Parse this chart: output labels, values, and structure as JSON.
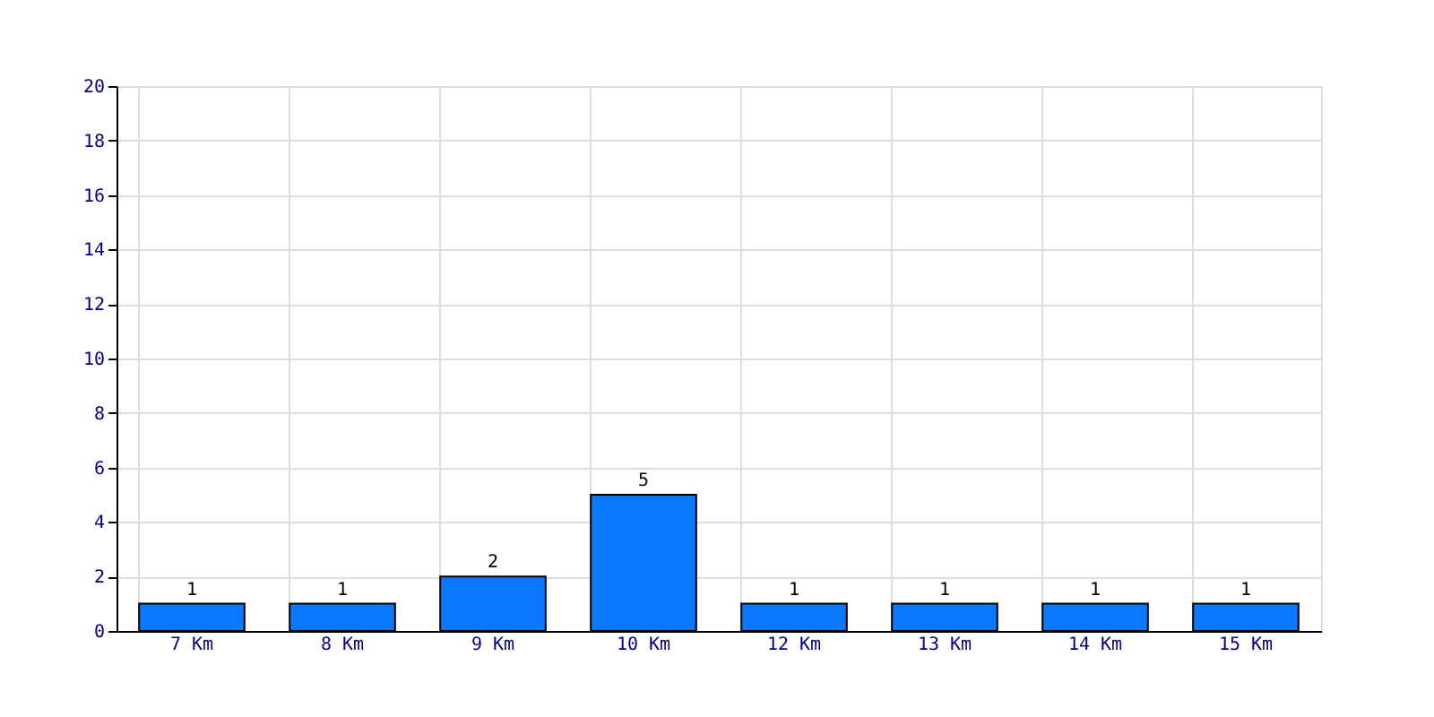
{
  "chart_data": {
    "type": "bar",
    "categories": [
      "7 Km",
      "8 Km",
      "9 Km",
      "10 Km",
      "12 Km",
      "13 Km",
      "14 Km",
      "15 Km"
    ],
    "values": [
      1,
      1,
      2,
      5,
      1,
      1,
      1,
      1
    ],
    "color": "#0a78ff",
    "ylim": [
      0,
      20
    ],
    "yticks": [
      0,
      2,
      4,
      6,
      8,
      10,
      12,
      14,
      16,
      18,
      20
    ],
    "grid": true,
    "data_labels": true
  }
}
